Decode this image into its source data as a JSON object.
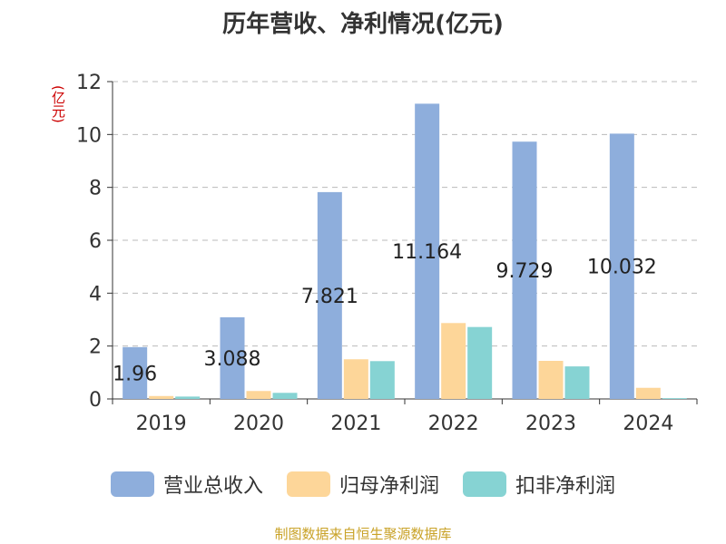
{
  "chart_data": {
    "type": "bar",
    "title": "历年营收、净利情况(亿元)",
    "ylabel": "(亿元)",
    "categories": [
      "2019",
      "2020",
      "2021",
      "2022",
      "2023",
      "2024"
    ],
    "ylim": [
      0,
      12
    ],
    "yticks": [
      0,
      2,
      4,
      6,
      8,
      10,
      12
    ],
    "grid": true,
    "legend_position": "bottom",
    "series": [
      {
        "name": "营业总收入",
        "color": "#8eaedc",
        "values": [
          1.96,
          3.088,
          7.821,
          11.164,
          9.729,
          10.032
        ],
        "labels": [
          "1.96",
          "3.088",
          "7.821",
          "11.164",
          "9.729",
          "10.032"
        ]
      },
      {
        "name": "归母净利润",
        "color": "#fdd699",
        "values": [
          0.11,
          0.3,
          1.5,
          2.87,
          1.44,
          0.42
        ]
      },
      {
        "name": "扣非净利润",
        "color": "#86d3d3",
        "values": [
          0.09,
          0.23,
          1.43,
          2.72,
          1.23,
          0.03
        ]
      }
    ]
  },
  "source": "制图数据来自恒生聚源数据库"
}
